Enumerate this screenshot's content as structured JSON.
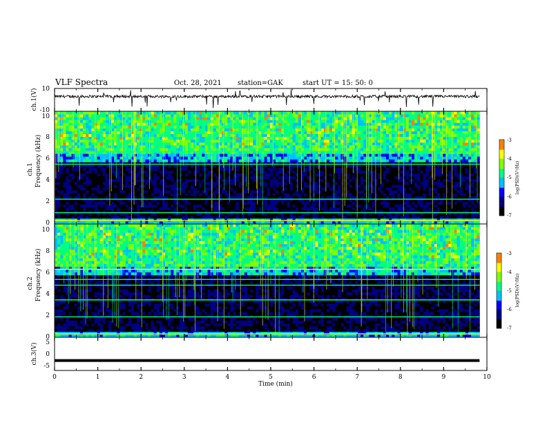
{
  "header": {
    "title": "VLF Spectra",
    "date": "Oct. 28, 2021",
    "station": "station=GAK",
    "start": "start  UT =   15: 50: 0"
  },
  "chart_data": [
    {
      "type": "line",
      "name": "ch1-waveform",
      "ylabel": "ch.1(V)",
      "ylim": [
        -10,
        10
      ],
      "y_ticks": [
        "10",
        "-10"
      ],
      "x_range": [
        0,
        9.83
      ],
      "baseline": 3,
      "noise_amplitude": 1.2,
      "color": "#000000"
    },
    {
      "type": "heatmap",
      "name": "ch1-spectrogram",
      "ylabel_line1": "ch.1",
      "ylabel_line2": "Frequency (kHz)",
      "ylim": [
        0,
        10
      ],
      "y_ticks": [
        "0",
        "2",
        "4",
        "6",
        "8",
        "10"
      ],
      "x_range": [
        0,
        9.83
      ],
      "colorbar": {
        "label": "log(PSD)(V²/Hz)",
        "range": [
          -7,
          -3
        ],
        "ticks": [
          "-3",
          "-4",
          "-5",
          "-6",
          "-7"
        ]
      },
      "bands_khz": [
        {
          "freq": 0.3,
          "level": 0.85
        },
        {
          "freq": 1.0,
          "level": 0.55
        },
        {
          "freq": 2.2,
          "level": 0.5
        },
        {
          "freq": 5.3,
          "level": 0.6
        },
        {
          "freq": 6.4,
          "level": 0.55
        }
      ]
    },
    {
      "type": "heatmap",
      "name": "ch2-spectrogram",
      "ylabel_line1": "ch.2",
      "ylabel_line2": "Frequency (kHz)",
      "ylim": [
        0,
        10
      ],
      "y_ticks": [
        "0",
        "2",
        "4",
        "6",
        "8",
        "10"
      ],
      "x_range": [
        0,
        9.83
      ],
      "colorbar": {
        "label": "log(PSD)(V²/Hz)",
        "range": [
          -7,
          -3
        ],
        "ticks": [
          "-3",
          "-4",
          "-5",
          "-6",
          "-7"
        ]
      },
      "bands_khz": [
        {
          "freq": 0.3,
          "level": 0.8
        },
        {
          "freq": 1.8,
          "level": 0.55
        },
        {
          "freq": 3.3,
          "level": 0.5
        },
        {
          "freq": 4.6,
          "level": 0.55
        },
        {
          "freq": 5.1,
          "level": 0.6
        },
        {
          "freq": 6.0,
          "level": 0.75
        }
      ]
    },
    {
      "type": "line",
      "name": "ch3-waveform",
      "ylabel": "ch.3(V)",
      "ylim": [
        -5,
        5
      ],
      "y_ticks": [
        "5",
        "0",
        "-5"
      ],
      "x_range": [
        0,
        9.83
      ],
      "value": -2,
      "color": "#000000"
    }
  ],
  "x_axis": {
    "label": "Time  (min)",
    "range": [
      0,
      10
    ],
    "ticks": [
      "0",
      "1",
      "2",
      "3",
      "4",
      "5",
      "6",
      "7",
      "8",
      "9",
      "10"
    ]
  },
  "colors": {
    "colormap": [
      "#000000",
      "#000080",
      "#0000ff",
      "#00c0ff",
      "#00ff80",
      "#80ff00",
      "#ffff00",
      "#ff8000",
      "#ff0000",
      "#ffffff"
    ]
  }
}
